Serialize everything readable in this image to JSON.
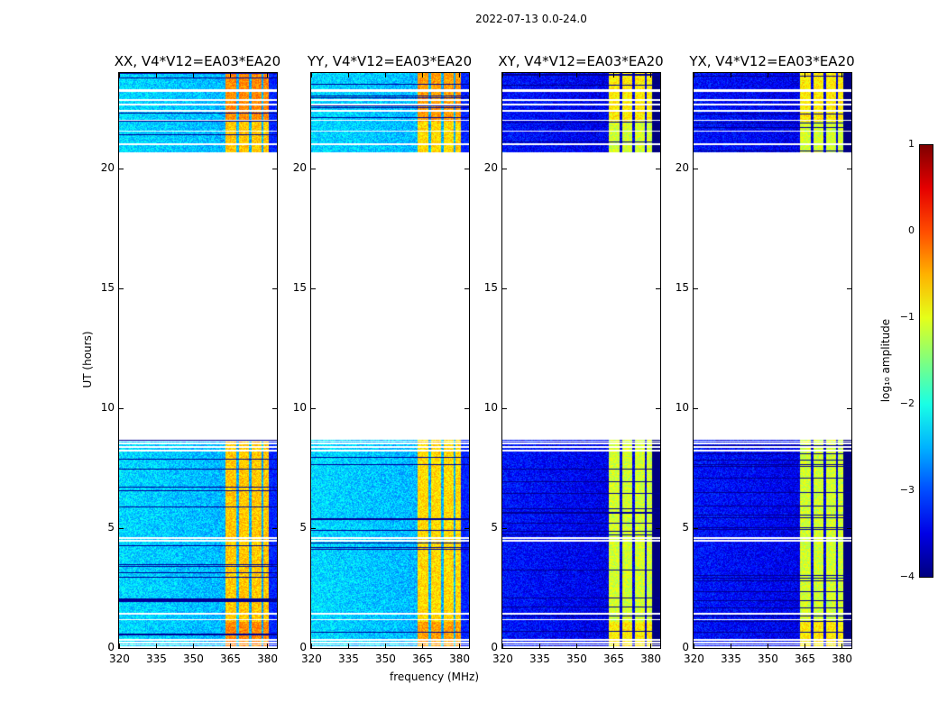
{
  "chart_data": {
    "type": "heatmap",
    "suptitle": "2022-07-13 0.0-24.0",
    "xlabel": "frequency (MHz)",
    "ylabel": "UT (hours)",
    "xlim": [
      320,
      384
    ],
    "ylim": [
      0,
      24
    ],
    "xticks": [
      "320",
      "335",
      "350",
      "365",
      "380"
    ],
    "yticks": [
      "0",
      "5",
      "10",
      "15",
      "20"
    ],
    "time_coverage_hours": [
      [
        0,
        8.7
      ],
      [
        20.7,
        24
      ]
    ],
    "flagged_rows_hours": [
      0.05,
      0.15,
      0.25,
      0.35,
      1.2,
      1.45,
      4.5,
      4.6,
      8.25,
      8.4,
      8.55,
      8.65,
      21.05,
      21.6,
      22.05,
      22.45,
      22.7,
      22.9,
      23.25,
      23.3
    ],
    "rfi_band_columns_mhz": [
      [
        363,
        367.5
      ],
      [
        368.5,
        372.5
      ],
      [
        373.5,
        377.5
      ],
      [
        378.5,
        380.5
      ]
    ],
    "panels": [
      {
        "title": "XX, V4*V12=EA03*EA20",
        "background_log_amp": -2.3,
        "band_log_amp": -0.6
      },
      {
        "title": "YY, V4*V12=EA03*EA20",
        "background_log_amp": -2.3,
        "band_log_amp": -0.7
      },
      {
        "title": "XY, V4*V12=EA03*EA20",
        "background_log_amp": -3.3,
        "band_log_amp": -1.1
      },
      {
        "title": "YX, V4*V12=EA03*EA20",
        "background_log_amp": -3.3,
        "band_log_amp": -1.1
      }
    ],
    "colorbar": {
      "label": "log₁₀ amplitude",
      "range": [
        -4,
        1
      ],
      "ticks": [
        "1",
        "0",
        "−1",
        "−2",
        "−3",
        "−4"
      ],
      "colormap": "jet"
    }
  }
}
